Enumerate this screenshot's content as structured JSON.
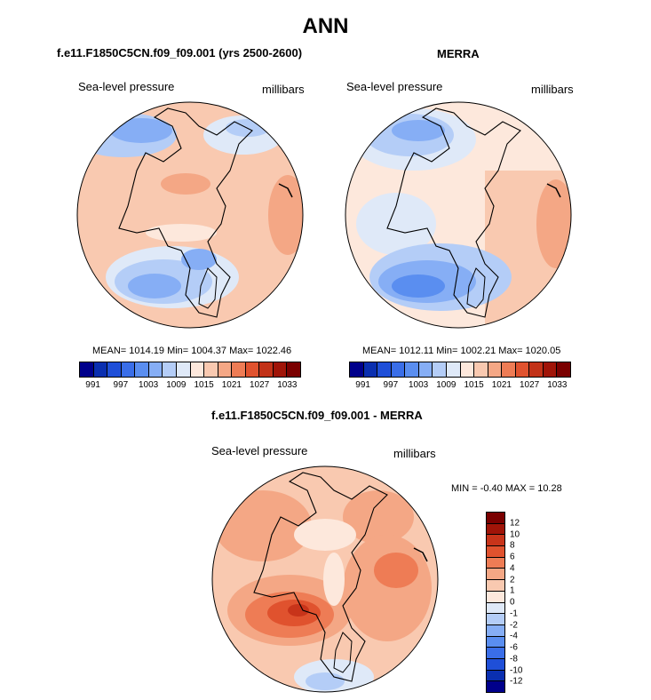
{
  "main_title": "ANN",
  "panels": {
    "model": {
      "title": "f.e11.F1850C5CN.f09_f09.001 (yrs 2500-2600)",
      "left_label": "Sea-level pressure",
      "right_label": "millibars",
      "stats": "MEAN= 1014.19  Min= 1004.37  Max= 1022.46"
    },
    "obs": {
      "title": "MERRA",
      "left_label": "Sea-level pressure",
      "right_label": "millibars",
      "stats": "MEAN= 1012.11  Min= 1002.21  Max= 1020.05"
    },
    "diff": {
      "title": "f.e11.F1850C5CN.f09_f09.001 - MERRA",
      "left_label": "Sea-level pressure",
      "right_label": "millibars",
      "stats": "MIN =  -0.40 MAX =  10.28"
    }
  },
  "chart_data": [
    {
      "type": "map",
      "projection": "north polar stereographic",
      "variable": "Sea-level pressure",
      "units": "millibars",
      "case": "f.e11.F1850C5CN.f09_f09.001 (yrs 2500-2600)",
      "mean": 1014.19,
      "min": 1004.37,
      "max": 1022.46,
      "colorbar_ticks": [
        "991",
        "997",
        "1003",
        "1009",
        "1015",
        "1021",
        "1027",
        "1033"
      ]
    },
    {
      "type": "map",
      "projection": "north polar stereographic",
      "variable": "Sea-level pressure",
      "units": "millibars",
      "case": "MERRA",
      "mean": 1012.11,
      "min": 1002.21,
      "max": 1020.05,
      "colorbar_ticks": [
        "991",
        "997",
        "1003",
        "1009",
        "1015",
        "1021",
        "1027",
        "1033"
      ]
    },
    {
      "type": "map",
      "projection": "north polar stereographic",
      "variable": "Sea-level pressure",
      "units": "millibars",
      "case": "f.e11.F1850C5CN.f09_f09.001 - MERRA",
      "min": -0.4,
      "max": 10.28,
      "colorbar_ticks": [
        "12",
        "10",
        "8",
        "6",
        "4",
        "2",
        "1",
        "0",
        "-1",
        "-2",
        "-4",
        "-6",
        "-8",
        "-10",
        "-12"
      ]
    }
  ],
  "colors": {
    "abs_scale": [
      "#00008b",
      "#0a2fb0",
      "#1f4fd8",
      "#3a6ee8",
      "#5a8ef0",
      "#86aef5",
      "#b4cdf7",
      "#dfe9f8",
      "#fde8dc",
      "#f9c9b0",
      "#f4a785",
      "#ee7c55",
      "#e0522e",
      "#c23218",
      "#a01408",
      "#7a0000"
    ],
    "diff_scale": [
      "#7a0000",
      "#a01408",
      "#c8341a",
      "#e0522e",
      "#ee7c55",
      "#f4a785",
      "#f9c9b0",
      "#fde8dc",
      "#dfe9f8",
      "#b4cdf7",
      "#86aef5",
      "#5a8ef0",
      "#3a6ee8",
      "#1f4fd8",
      "#0a2fb0",
      "#00008b"
    ]
  }
}
